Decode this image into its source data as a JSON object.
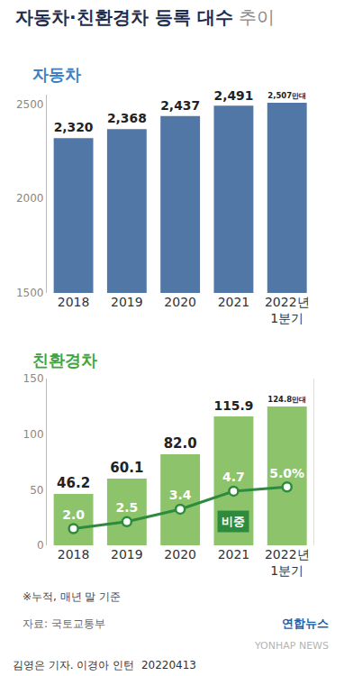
{
  "title": "자동차·친환경차 등록 대수",
  "title_suffix": "추이",
  "footnote": "※누적, 매년 말 기준",
  "source": "자료: 국토교통부",
  "brand": "연합뉴스",
  "watermark": "YONHAP NEWS",
  "credit": "김영은 기자. 이경아 인턴",
  "date": "20220413",
  "chart_data": [
    {
      "type": "bar",
      "title": "자동차",
      "categories": [
        "2018",
        "2019",
        "2020",
        "2021",
        "2022년 1분기"
      ],
      "values": [
        2320,
        2368,
        2437,
        2491,
        2507
      ],
      "value_labels": [
        "2,320",
        "2,368",
        "2,437",
        "2,491",
        "2,507만대"
      ],
      "color": "#5177a6",
      "ylim": [
        1500,
        2550
      ],
      "yticks": [
        1500,
        2000,
        2500
      ],
      "grid": false,
      "data_labels": true
    },
    {
      "type": "bar",
      "title": "친환경차",
      "categories": [
        "2018",
        "2019",
        "2020",
        "2021",
        "2022년 1분기"
      ],
      "values": [
        46.2,
        60.1,
        82.0,
        115.9,
        124.8
      ],
      "value_labels": [
        "46.2",
        "60.1",
        "82.0",
        "115.9",
        "124.8만대"
      ],
      "color": "#8dc46b",
      "ylim": [
        0,
        150
      ],
      "yticks": [
        0,
        50,
        100,
        150
      ],
      "y2lim": [
        0.8,
        12.8
      ],
      "grid": false,
      "data_labels": true,
      "series": [
        {
          "name": "비중",
          "type": "line",
          "axis": "y2",
          "color": "#2e8b3e",
          "marker": "circle",
          "values": [
            2.0,
            2.5,
            3.4,
            4.7,
            5.0
          ],
          "value_labels": [
            "2.0",
            "2.5",
            "3.4",
            "4.7",
            "5.0%"
          ]
        }
      ]
    }
  ]
}
